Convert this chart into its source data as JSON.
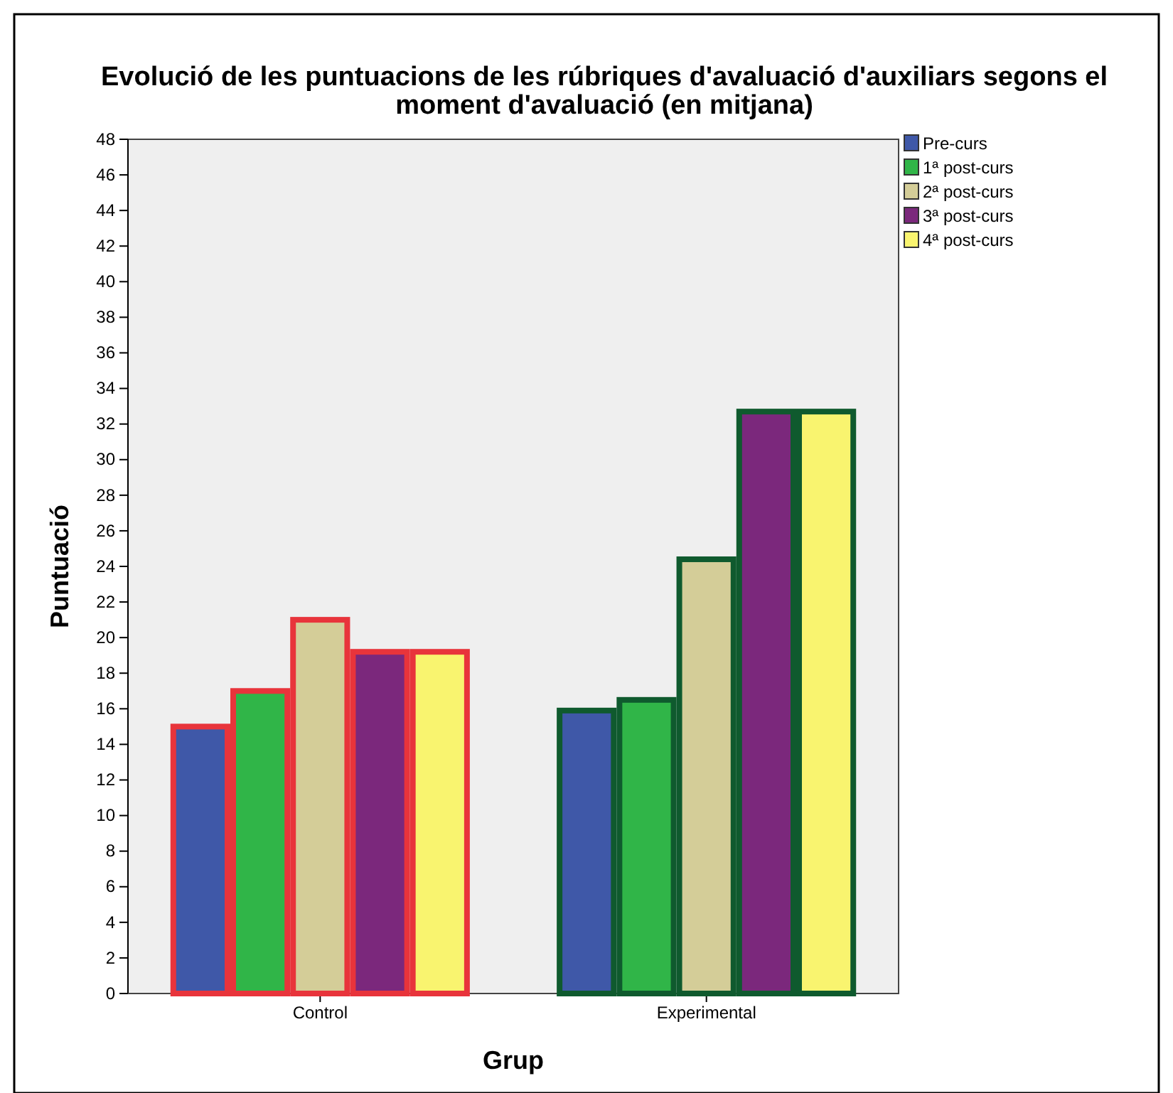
{
  "chart_data": {
    "type": "bar",
    "title": "Evolució de les puntuacions de les rúbriques d'avaluació d'auxiliars segons el moment d'avaluació (en mitjana)",
    "xlabel": "Grup",
    "ylabel": "Puntuació",
    "categories": [
      "Control",
      "Experimental"
    ],
    "series": [
      {
        "name": "Pre-curs",
        "color": "#3f58a8",
        "values": [
          15,
          15.9
        ]
      },
      {
        "name": "1ª post-curs",
        "color": "#30b548",
        "values": [
          17,
          16.5
        ]
      },
      {
        "name": "2ª post-curs",
        "color": "#d4cd98",
        "values": [
          21,
          24.4
        ]
      },
      {
        "name": "3ª post-curs",
        "color": "#7b287c",
        "values": [
          19.2,
          32.7
        ]
      },
      {
        "name": "4ª post-curs",
        "color": "#f9f46f",
        "values": [
          19.2,
          32.7
        ]
      }
    ],
    "ylim": [
      0,
      48
    ],
    "yticks": [
      0,
      2,
      4,
      6,
      8,
      10,
      12,
      14,
      16,
      18,
      20,
      22,
      24,
      26,
      28,
      30,
      32,
      34,
      36,
      38,
      40,
      42,
      44,
      46,
      48
    ],
    "grid": false,
    "legend": "top right"
  }
}
